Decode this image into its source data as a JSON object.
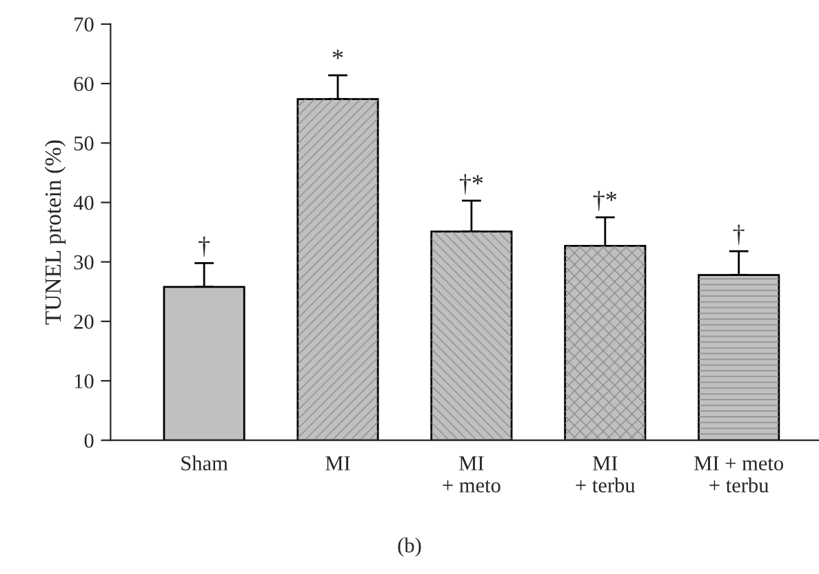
{
  "chart_data": {
    "type": "bar",
    "ylabel": "TUNEL protein (%)",
    "categories": [
      "Sham",
      "MI",
      "MI\n+ meto",
      "MI\n+ terbu",
      "MI + meto\n+ terbu"
    ],
    "values": [
      25.8,
      57.4,
      35.1,
      32.7,
      27.8
    ],
    "errors": [
      [
        25.8,
        29.8
      ],
      [
        57.4,
        61.4
      ],
      [
        35.1,
        40.3
      ],
      [
        32.7,
        37.5
      ],
      [
        27.8,
        31.8
      ]
    ],
    "color": "#c0c0c0",
    "ylim": [
      0,
      70
    ],
    "yticks": [
      0,
      10,
      20,
      30,
      40,
      50,
      60,
      70
    ],
    "grid": false,
    "annotations": [
      {
        "text": "†",
        "x": "Sham",
        "y": 29.8
      },
      {
        "text": "*",
        "x": "MI",
        "y": 61.4
      },
      {
        "text": "†*",
        "x": "MI\n+ meto",
        "y": 40.3
      },
      {
        "text": "†*",
        "x": "MI\n+ terbu",
        "y": 37.5
      },
      {
        "text": "†",
        "x": "MI + meto\n+ terbu",
        "y": 31.8
      },
      "(b)"
    ]
  }
}
